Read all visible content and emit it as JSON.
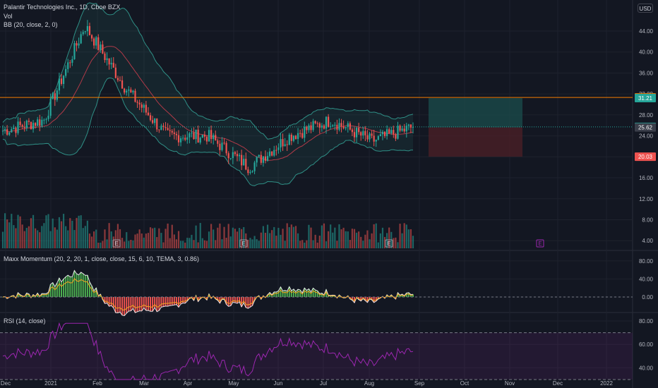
{
  "header": {
    "symbol_title": "Palantir Technologies Inc., 1D, Cboe BZX",
    "vol_label": "Vol",
    "bb_label": "BB (20, close, 2, 0)",
    "momentum_label": "Maxx Momentum (20, 2, 20, 1, close, close, 15, 6, 10, TEMA, 3, 0.86)",
    "rsi_label": "RSI (14, close)",
    "currency": "USD"
  },
  "colors": {
    "background": "#131722",
    "up": "#26a69a",
    "down": "#ef5350",
    "bb_band": "#2f8f86",
    "bb_basis": "#b03a48",
    "rsi": "#9c27b0",
    "momentum_fast": "#e8e8e8",
    "momentum_slow": "#f5a623",
    "position_profit": "#1a4a4a",
    "position_loss": "#4a1f27",
    "resistance": "#f57c00"
  },
  "chart_data": [
    {
      "type": "candlestick",
      "name": "price",
      "y_ticks": [
        "44.00",
        "40.00",
        "36.00",
        "32.00",
        "28.00",
        "24.00",
        "20.00",
        "16.00",
        "12.00",
        "8.00",
        "4.00"
      ],
      "x_ticks": [
        "Dec",
        "2021",
        "Feb",
        "Mar",
        "Apr",
        "May",
        "Jun",
        "Jul",
        "Aug",
        "Sep",
        "Oct",
        "Nov",
        "Dec",
        "2022"
      ],
      "price_labels": [
        {
          "value": "31.34",
          "color": "#f57c00"
        },
        {
          "value": "31.21",
          "color": "#26a69a"
        },
        {
          "value": "25.71",
          "color": "#26a69a"
        },
        {
          "value": "25.62",
          "color": "#3a3e4a"
        },
        {
          "value": "20.03",
          "color": "#ef5350"
        }
      ],
      "earnings_markers": [
        "E",
        "E",
        "E",
        "E"
      ],
      "key_points": [
        {
          "date": "Dec",
          "close": 25
        },
        {
          "date": "2021",
          "close": 27
        },
        {
          "date": "Jan high",
          "close": 45
        },
        {
          "date": "Feb",
          "close": 33
        },
        {
          "date": "Mar",
          "close": 24
        },
        {
          "date": "Apr",
          "close": 24
        },
        {
          "date": "May low",
          "close": 18
        },
        {
          "date": "Jun",
          "close": 24
        },
        {
          "date": "Jul",
          "close": 27
        },
        {
          "date": "Aug",
          "close": 23
        },
        {
          "date": "last",
          "close": 25.71
        }
      ],
      "position": {
        "entry": 25.62,
        "target": 31.21,
        "stop": 20.03
      },
      "resistance_level": 31.34
    },
    {
      "type": "line",
      "name": "momentum",
      "y_ticks": [
        "80.00",
        "40.00",
        "0.00"
      ]
    },
    {
      "type": "line",
      "name": "rsi",
      "y_ticks": [
        "80.00",
        "60.00",
        "40.00"
      ],
      "bands": [
        70,
        30
      ]
    }
  ]
}
